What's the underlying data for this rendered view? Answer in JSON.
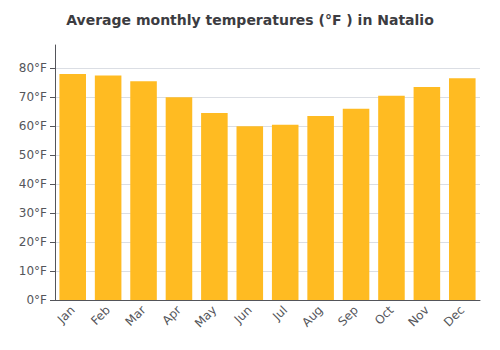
{
  "chart_data": {
    "type": "bar",
    "title": "Average monthly temperatures (°F ) in Natalio",
    "categories": [
      "Jan",
      "Feb",
      "Mar",
      "Apr",
      "May",
      "Jun",
      "Jul",
      "Aug",
      "Sep",
      "Oct",
      "Nov",
      "Dec"
    ],
    "values": [
      78,
      77.5,
      75.5,
      70,
      64.5,
      60,
      60.5,
      63.5,
      66,
      70.5,
      73.5,
      76.5
    ],
    "color": "#FFBB22",
    "ylim": [
      0,
      88
    ],
    "yticks": [
      {
        "value": 0,
        "label": "0°F"
      },
      {
        "value": 10,
        "label": "10°F"
      },
      {
        "value": 20,
        "label": "20°F"
      },
      {
        "value": 30,
        "label": "30°F"
      },
      {
        "value": 40,
        "label": "40°F"
      },
      {
        "value": 50,
        "label": "50°F"
      },
      {
        "value": 60,
        "label": "60°F"
      },
      {
        "value": 70,
        "label": "70°F"
      },
      {
        "value": 80,
        "label": "80°F"
      }
    ],
    "grid": true
  }
}
